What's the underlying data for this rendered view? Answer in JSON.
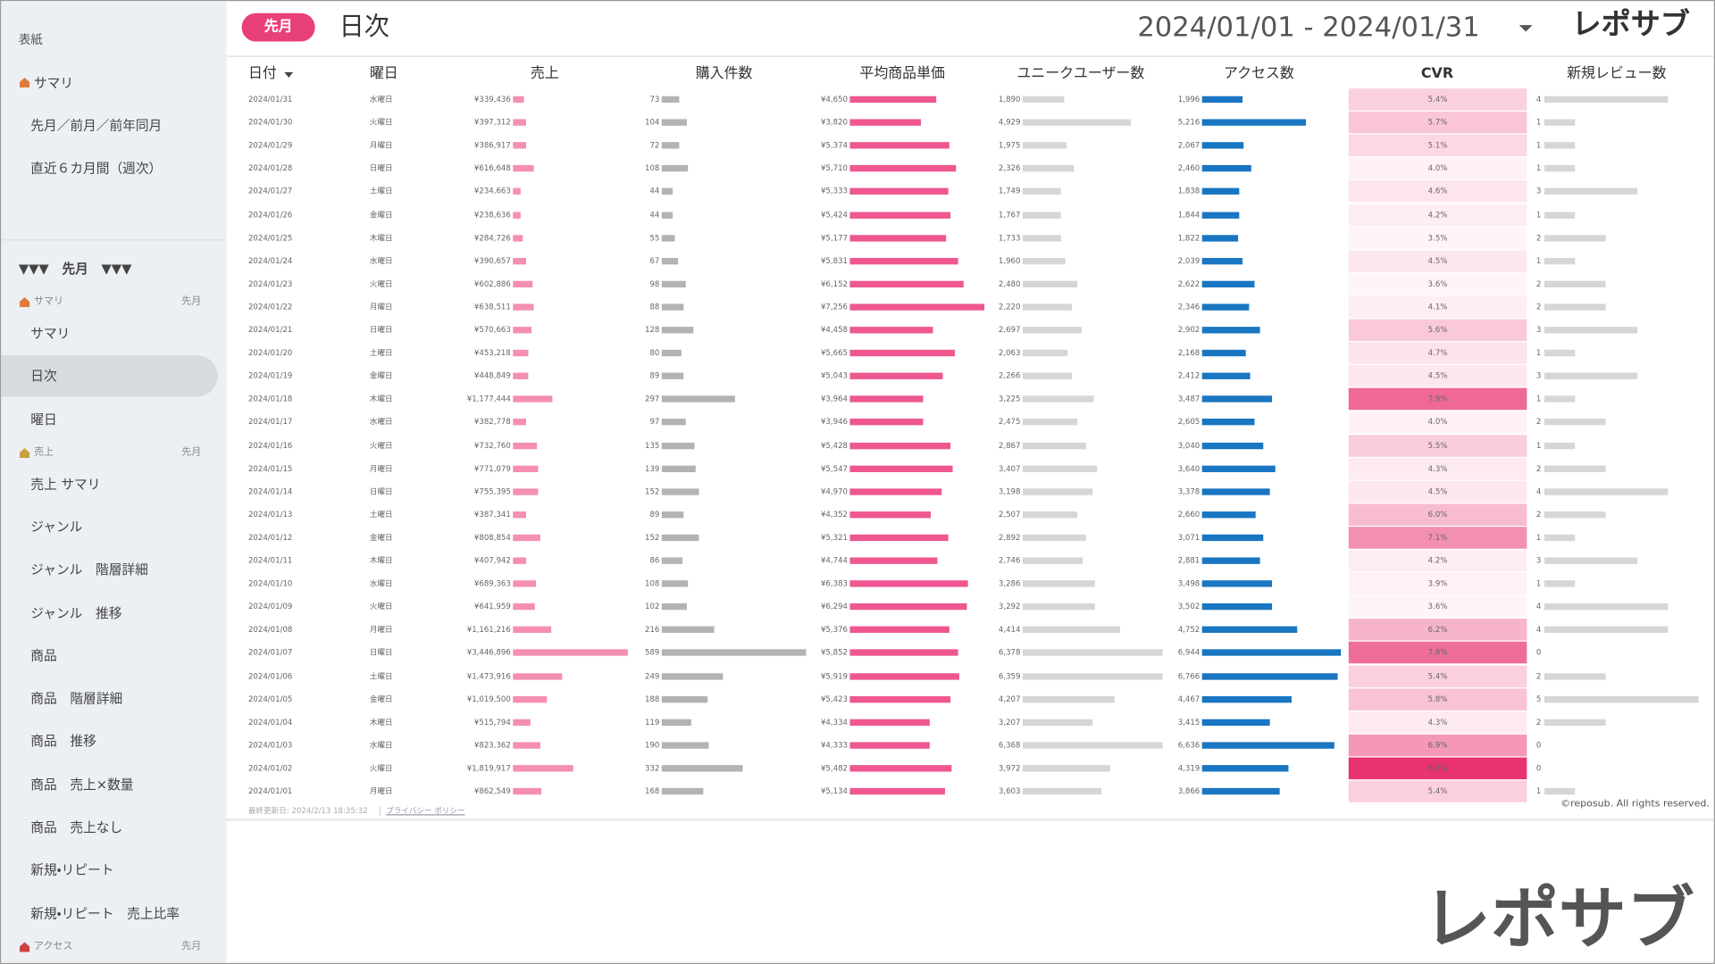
{
  "sidebar": {
    "cover": "表紙",
    "home": "サマリ",
    "links": [
      "先月／前月／前年同月",
      "直近６カ月間（週次）"
    ],
    "period_heading": "▼▼▼　先月　▼▼▼",
    "groups": [
      {
        "label": "サマリ",
        "period": "先月",
        "items": [
          "サマリ",
          "日次",
          "曜日"
        ]
      },
      {
        "label": "売上",
        "period": "先月",
        "items": [
          "売上 サマリ",
          "ジャンル",
          "ジャンル　階層詳細",
          "ジャンル　推移",
          "商品",
          "商品　階層詳細",
          "商品　推移",
          "商品　売上×数量",
          "商品　売上なし",
          "新規・リピート",
          "新規・リピート　売上比率"
        ]
      },
      {
        "label": "アクセス",
        "period": "先月"
      }
    ]
  },
  "header": {
    "period_badge": "先月",
    "page_title": "日次",
    "date_range": "2024/01/01 - 2024/01/31",
    "logo": "レポサブ"
  },
  "table": {
    "columns": [
      "日付",
      "曜日",
      "売上",
      "購入件数",
      "平均商品単価",
      "ユニークユーザー数",
      "アクセス数",
      "CVR",
      "新規レビュー数"
    ],
    "rows": [
      [
        "2024/01/31",
        "水曜日",
        "¥339,436",
        "73",
        "¥4,650",
        "1,890",
        "1,996",
        "5.4%",
        "4"
      ],
      [
        "2024/01/30",
        "火曜日",
        "¥397,312",
        "104",
        "¥3,820",
        "4,929",
        "5,216",
        "5.7%",
        "1"
      ],
      [
        "2024/01/29",
        "月曜日",
        "¥386,917",
        "72",
        "¥5,374",
        "1,975",
        "2,067",
        "5.1%",
        "1"
      ],
      [
        "2024/01/28",
        "日曜日",
        "¥616,648",
        "108",
        "¥5,710",
        "2,326",
        "2,460",
        "4.0%",
        "1"
      ],
      [
        "2024/01/27",
        "土曜日",
        "¥234,663",
        "44",
        "¥5,333",
        "1,749",
        "1,838",
        "4.6%",
        "3"
      ],
      [
        "2024/01/26",
        "金曜日",
        "¥238,636",
        "44",
        "¥5,424",
        "1,767",
        "1,844",
        "4.2%",
        "1"
      ],
      [
        "2024/01/25",
        "木曜日",
        "¥284,726",
        "55",
        "¥5,177",
        "1,733",
        "1,822",
        "3.5%",
        "2"
      ],
      [
        "2024/01/24",
        "水曜日",
        "¥390,657",
        "67",
        "¥5,831",
        "1,960",
        "2,039",
        "4.5%",
        "1"
      ],
      [
        "2024/01/23",
        "火曜日",
        "¥602,886",
        "98",
        "¥6,152",
        "2,480",
        "2,622",
        "3.6%",
        "2"
      ],
      [
        "2024/01/22",
        "月曜日",
        "¥638,511",
        "88",
        "¥7,256",
        "2,220",
        "2,346",
        "4.1%",
        "2"
      ],
      [
        "2024/01/21",
        "日曜日",
        "¥570,663",
        "128",
        "¥4,458",
        "2,697",
        "2,902",
        "5.6%",
        "3"
      ],
      [
        "2024/01/20",
        "土曜日",
        "¥453,218",
        "80",
        "¥5,665",
        "2,063",
        "2,168",
        "4.7%",
        "1"
      ],
      [
        "2024/01/19",
        "金曜日",
        "¥448,849",
        "89",
        "¥5,043",
        "2,266",
        "2,412",
        "4.5%",
        "3"
      ],
      [
        "2024/01/18",
        "木曜日",
        "¥1,177,444",
        "297",
        "¥3,964",
        "3,225",
        "3,487",
        "7.9%",
        "1"
      ],
      [
        "2024/01/17",
        "水曜日",
        "¥382,778",
        "97",
        "¥3,946",
        "2,475",
        "2,605",
        "4.0%",
        "2"
      ],
      [
        "2024/01/16",
        "火曜日",
        "¥732,760",
        "135",
        "¥5,428",
        "2,867",
        "3,040",
        "5.5%",
        "1"
      ],
      [
        "2024/01/15",
        "月曜日",
        "¥771,079",
        "139",
        "¥5,547",
        "3,407",
        "3,640",
        "4.3%",
        "2"
      ],
      [
        "2024/01/14",
        "日曜日",
        "¥755,395",
        "152",
        "¥4,970",
        "3,198",
        "3,378",
        "4.5%",
        "4"
      ],
      [
        "2024/01/13",
        "土曜日",
        "¥387,341",
        "89",
        "¥4,352",
        "2,507",
        "2,660",
        "6.0%",
        "2"
      ],
      [
        "2024/01/12",
        "金曜日",
        "¥808,854",
        "152",
        "¥5,321",
        "2,892",
        "3,071",
        "7.1%",
        "1"
      ],
      [
        "2024/01/11",
        "木曜日",
        "¥407,942",
        "86",
        "¥4,744",
        "2,746",
        "2,881",
        "4.2%",
        "3"
      ],
      [
        "2024/01/10",
        "水曜日",
        "¥689,363",
        "108",
        "¥6,383",
        "3,286",
        "3,498",
        "3.9%",
        "1"
      ],
      [
        "2024/01/09",
        "火曜日",
        "¥641,959",
        "102",
        "¥6,294",
        "3,292",
        "3,502",
        "3.6%",
        "4"
      ],
      [
        "2024/01/08",
        "月曜日",
        "¥1,161,216",
        "216",
        "¥5,376",
        "4,414",
        "4,752",
        "6.2%",
        "4"
      ],
      [
        "2024/01/07",
        "日曜日",
        "¥3,446,896",
        "589",
        "¥5,852",
        "6,378",
        "6,944",
        "7.8%",
        "0"
      ],
      [
        "2024/01/06",
        "土曜日",
        "¥1,473,916",
        "249",
        "¥5,919",
        "6,359",
        "6,766",
        "5.4%",
        "2"
      ],
      [
        "2024/01/05",
        "金曜日",
        "¥1,019,500",
        "188",
        "¥5,423",
        "4,207",
        "4,467",
        "5.8%",
        "5"
      ],
      [
        "2024/01/04",
        "木曜日",
        "¥515,794",
        "119",
        "¥4,334",
        "3,207",
        "3,415",
        "4.3%",
        "2"
      ],
      [
        "2024/01/03",
        "水曜日",
        "¥823,362",
        "190",
        "¥4,333",
        "6,368",
        "6,636",
        "6.9%",
        "0"
      ],
      [
        "2024/01/02",
        "火曜日",
        "¥1,819,917",
        "332",
        "¥5,482",
        "3,972",
        "4,319",
        "8.9%",
        "0"
      ],
      [
        "2024/01/01",
        "月曜日",
        "¥862,549",
        "168",
        "¥5,134",
        "3,603",
        "3,866",
        "5.4%",
        "1"
      ]
    ]
  },
  "footer": {
    "last_updated": "最終更新日: 2024/2/13 18:35:32",
    "privacy": "プライバシー ポリシー",
    "copyright": "©reposub. All rights reserved."
  },
  "watermark_logo": "レポサブ"
}
